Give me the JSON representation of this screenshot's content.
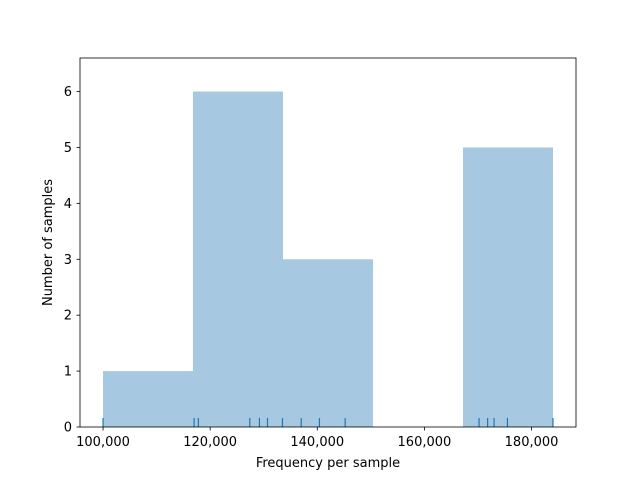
{
  "chart_data": {
    "type": "bar",
    "subtype": "histogram-with-rug",
    "xlabel": "Frequency per sample",
    "ylabel": "Number of samples",
    "xlim": [
      95700,
      188300
    ],
    "ylim": [
      0,
      6.6
    ],
    "x_ticks": [
      {
        "value": 100000,
        "label": "100,000"
      },
      {
        "value": 120000,
        "label": "120,000"
      },
      {
        "value": 140000,
        "label": "140,000"
      },
      {
        "value": 160000,
        "label": "160,000"
      },
      {
        "value": 180000,
        "label": "180,000"
      }
    ],
    "y_ticks": [
      {
        "value": 0,
        "label": "0"
      },
      {
        "value": 1,
        "label": "1"
      },
      {
        "value": 2,
        "label": "2"
      },
      {
        "value": 3,
        "label": "3"
      },
      {
        "value": 4,
        "label": "4"
      },
      {
        "value": 5,
        "label": "5"
      },
      {
        "value": 6,
        "label": "6"
      }
    ],
    "bins": [
      {
        "start": 100000,
        "end": 116800,
        "count": 1
      },
      {
        "start": 116800,
        "end": 133600,
        "count": 6
      },
      {
        "start": 133600,
        "end": 150400,
        "count": 3
      },
      {
        "start": 150400,
        "end": 167200,
        "count": 0
      },
      {
        "start": 167200,
        "end": 184000,
        "count": 5
      }
    ],
    "rug_values": [
      100000,
      117000,
      117800,
      127400,
      129200,
      130700,
      133500,
      137000,
      140400,
      145200,
      170200,
      171800,
      173000,
      175500,
      184000
    ],
    "bar_color": "#a6c8e0",
    "rug_color": "#1f77b4",
    "grid": false,
    "legend": "none"
  }
}
